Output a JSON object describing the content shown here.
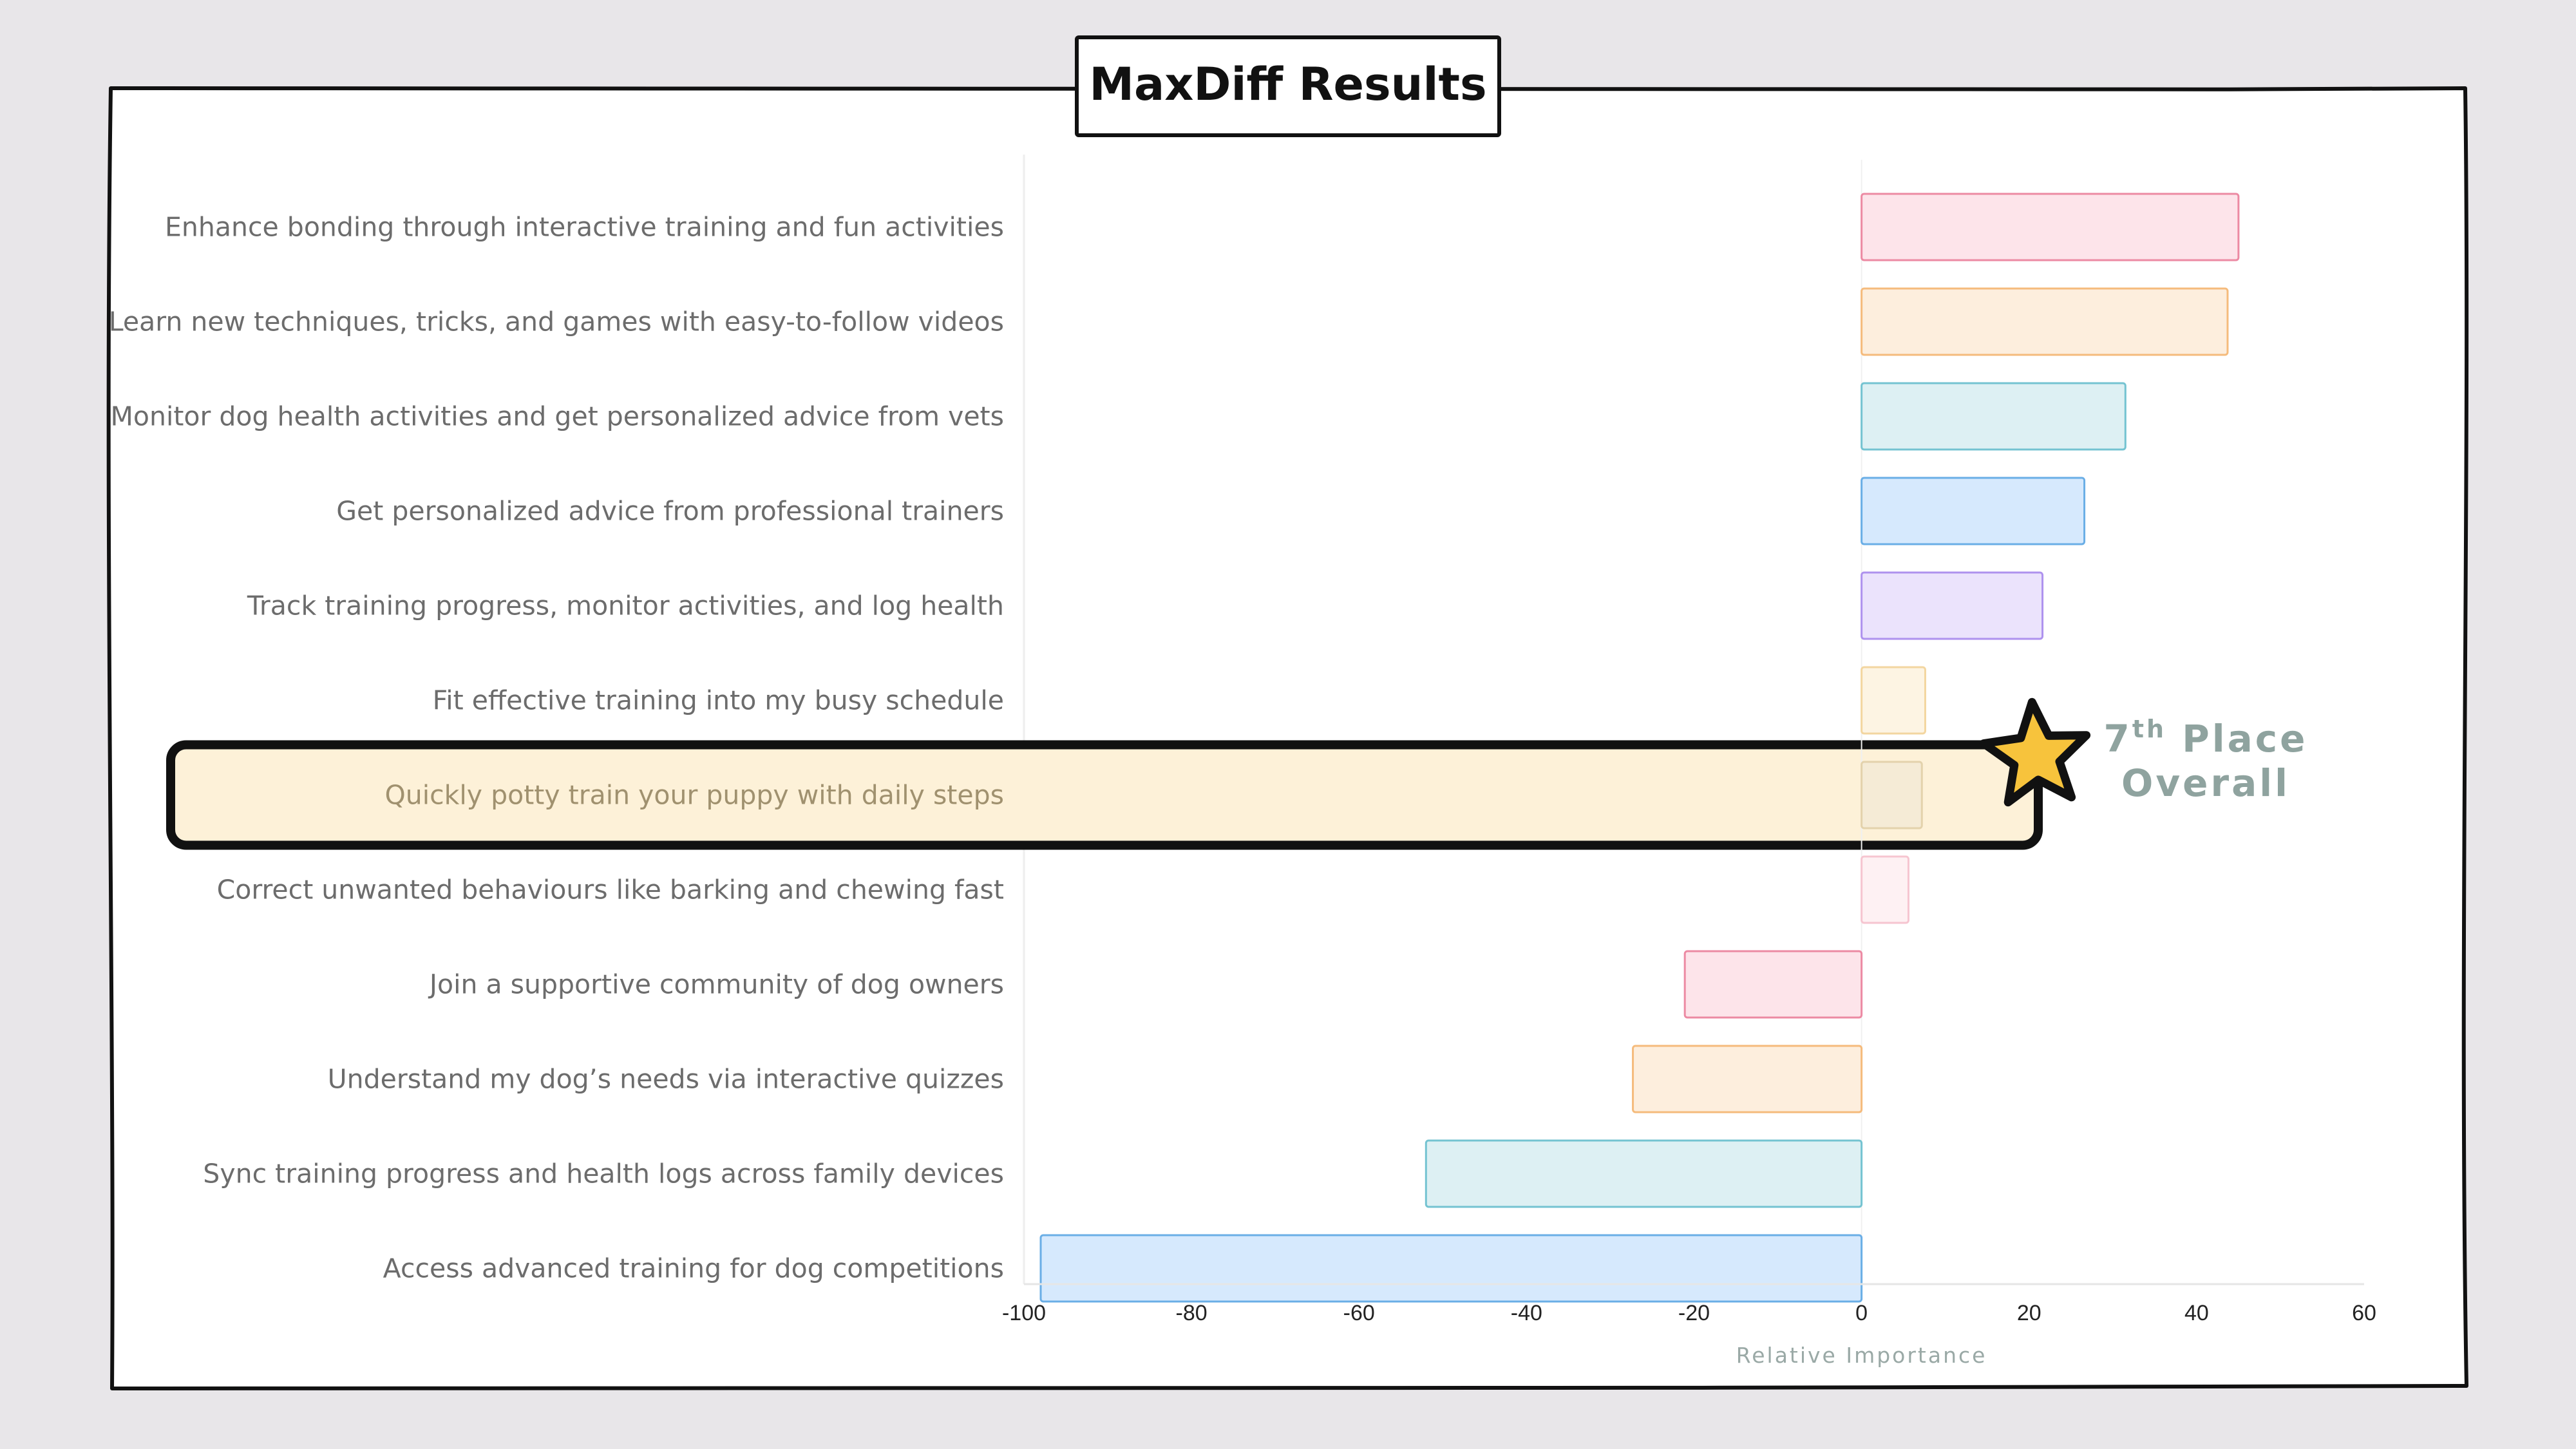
{
  "title": "MaxDiff Results",
  "callout": {
    "rank_number": "7",
    "rank_suffix": "th",
    "line1_rest": " Place",
    "line2": "Overall",
    "highlight_color": "#fdf1d8",
    "star_color": "#f7c33c",
    "text_color": "#8fa39f"
  },
  "chart_data": {
    "type": "bar",
    "orientation": "horizontal",
    "title": "MaxDiff Results",
    "xlabel": "Relative Importance",
    "ylabel": "",
    "xlim": [
      -100,
      60
    ],
    "xticks": [
      -100,
      -80,
      -60,
      -40,
      -20,
      0,
      20,
      40,
      60
    ],
    "grid": false,
    "highlighted_category_index": 6,
    "categories": [
      "Enhance bonding through interactive training and fun activities",
      "Learn new techniques, tricks, and games with easy-to-follow videos",
      "Monitor dog health activities and get personalized advice from vets",
      "Get personalized advice from professional trainers",
      "Track training progress, monitor activities, and log health",
      "Fit effective training into my busy schedule",
      "Quickly potty train your puppy with daily steps",
      "Correct unwanted behaviours like barking and chewing fast",
      "Join a supportive community of dog owners",
      "Understand my dog’s needs via interactive quizzes",
      "Sync training progress and health logs across family devices",
      "Access advanced training for dog competitions"
    ],
    "values": [
      45,
      43.7,
      31.5,
      26.6,
      21.6,
      7.6,
      7.2,
      5.6,
      -21.1,
      -27.3,
      -52.0,
      -98.0
    ],
    "bar_colors": [
      {
        "fill": "#fde4ea",
        "stroke": "#ec8aa3"
      },
      {
        "fill": "#fdeedd",
        "stroke": "#f5bb7c"
      },
      {
        "fill": "#ddf0f3",
        "stroke": "#74c3d1"
      },
      {
        "fill": "#d6e9fd",
        "stroke": "#6aaee6"
      },
      {
        "fill": "#ebe3fc",
        "stroke": "#ae92ee"
      },
      {
        "fill": "#fdf4e3",
        "stroke": "#f3d6a0"
      },
      {
        "fill": "#f5ebd6",
        "stroke": "#e3d2ac"
      },
      {
        "fill": "#fef1f3",
        "stroke": "#f6c5d0"
      },
      {
        "fill": "#fde4ea",
        "stroke": "#ec8aa3"
      },
      {
        "fill": "#fdeedd",
        "stroke": "#f5bb7c"
      },
      {
        "fill": "#ddf0f3",
        "stroke": "#74c3d1"
      },
      {
        "fill": "#d6e9fd",
        "stroke": "#6aaee6"
      }
    ]
  }
}
